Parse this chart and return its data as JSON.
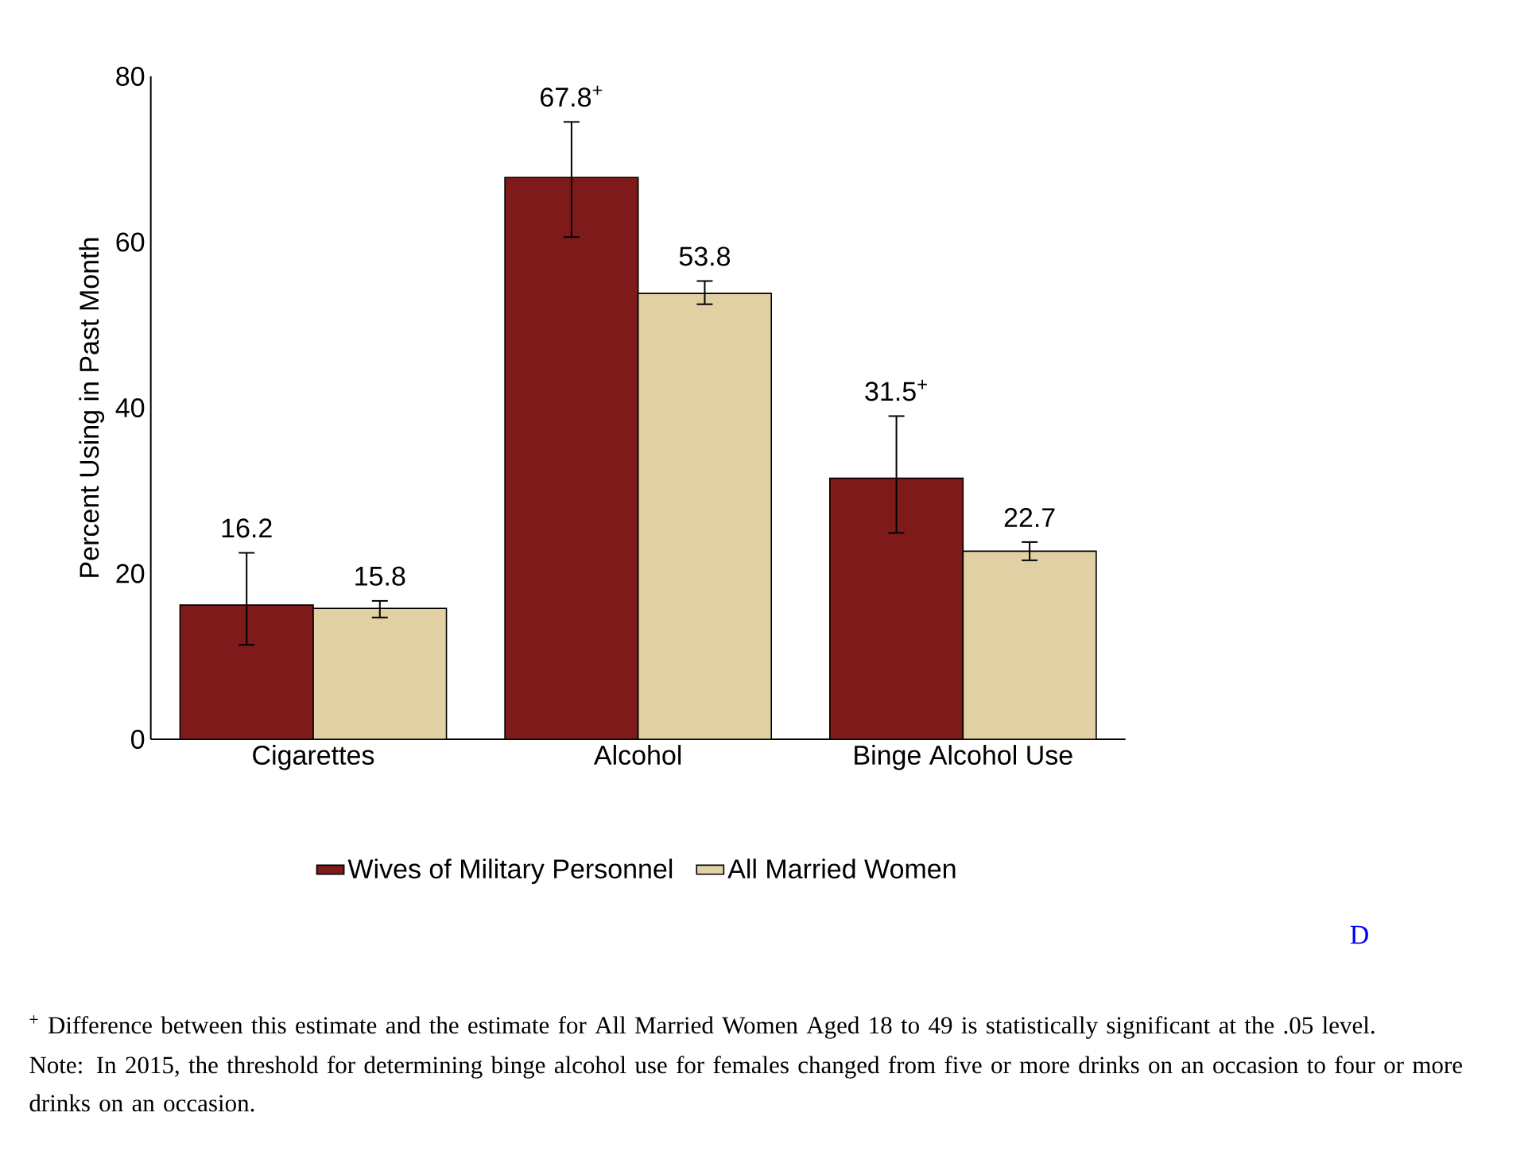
{
  "chart_data": {
    "type": "bar",
    "ylabel": "Percent Using in Past Month",
    "categories": [
      "Cigarettes",
      "Alcohol",
      "Binge Alcohol Use"
    ],
    "ylim": [
      0,
      80
    ],
    "yticks": [
      0,
      20,
      40,
      60,
      80
    ],
    "grid": false,
    "legend": "bottom",
    "series": [
      {
        "name": "Wives of Military Personnel",
        "color": "#7f1a1a",
        "values": [
          16.2,
          67.8,
          31.5
        ],
        "errors": [
          [
            11.4,
            22.5
          ],
          [
            60.6,
            74.5
          ],
          [
            24.9,
            39.0
          ]
        ],
        "value_labels": [
          "16.2",
          "67.8$^{+}$",
          "31.5$^{+}$"
        ]
      },
      {
        "name": "All Married Women",
        "color": "#e0d0a3",
        "values": [
          15.8,
          53.8,
          22.7
        ],
        "errors": [
          [
            14.7,
            16.7
          ],
          [
            52.5,
            55.3
          ],
          [
            21.6,
            23.8
          ]
        ],
        "value_labels": [
          "15.8",
          "53.8",
          "22.7"
        ]
      }
    ],
    "annotations": [
      "D",
      "$^{+}$ Difference between this estimate and the estimate for All Married Women Aged 18 to 49 is statistically significant at the .05 level.",
      "Note: In 2015, the threshold for determining binge alcohol use for females changed from five or more drinks on an occasion to four or more drinks on an occasion."
    ]
  }
}
